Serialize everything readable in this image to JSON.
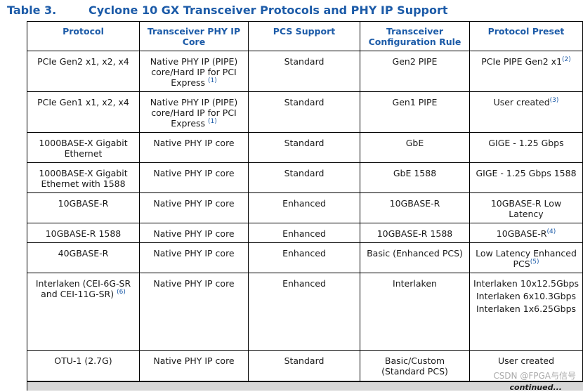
{
  "caption": {
    "number": "Table 3.",
    "title": "Cyclone 10 GX Transceiver Protocols and PHY IP Support"
  },
  "headers": [
    "Protocol",
    "Transceiver PHY IP Core",
    "PCS Support",
    "Transceiver Configuration Rule",
    "Protocol Preset"
  ],
  "rows": [
    {
      "protocol": "PCIe Gen2 x1, x2, x4",
      "protocol_ref": "",
      "phy": "Native PHY IP (PIPE) core/Hard IP for PCI Express",
      "phy_ref": "(1)",
      "pcs": "Standard",
      "rule": "Gen2 PIPE",
      "preset": [
        "PCIe PIPE Gen2 x1"
      ],
      "preset_ref": "(2)"
    },
    {
      "protocol": "PCIe Gen1 x1, x2, x4",
      "protocol_ref": "",
      "phy": "Native PHY IP (PIPE) core/Hard IP for PCI Express",
      "phy_ref": "(1)",
      "pcs": "Standard",
      "rule": "Gen1 PIPE",
      "preset": [
        "User created"
      ],
      "preset_ref": "(3)"
    },
    {
      "protocol": "1000BASE-X Gigabit Ethernet",
      "protocol_ref": "",
      "phy": "Native PHY IP core",
      "phy_ref": "",
      "pcs": "Standard",
      "rule": "GbE",
      "preset": [
        "GIGE - 1.25 Gbps"
      ],
      "preset_ref": ""
    },
    {
      "protocol": "1000BASE-X Gigabit Ethernet with 1588",
      "protocol_ref": "",
      "phy": "Native PHY IP core",
      "phy_ref": "",
      "pcs": "Standard",
      "rule": "GbE 1588",
      "preset": [
        "GIGE - 1.25 Gbps 1588"
      ],
      "preset_ref": ""
    },
    {
      "protocol": "10GBASE-R",
      "protocol_ref": "",
      "phy": "Native PHY IP core",
      "phy_ref": "",
      "pcs": "Enhanced",
      "rule": "10GBASE-R",
      "preset": [
        "10GBASE-R Low Latency"
      ],
      "preset_ref": ""
    },
    {
      "protocol": "10GBASE-R 1588",
      "protocol_ref": "",
      "phy": "Native PHY IP core",
      "phy_ref": "",
      "pcs": "Enhanced",
      "rule": "10GBASE-R 1588",
      "preset": [
        "10GBASE-R"
      ],
      "preset_ref": "(4)"
    },
    {
      "protocol": "40GBASE-R",
      "protocol_ref": "",
      "phy": "Native PHY IP core",
      "phy_ref": "",
      "pcs": "Enhanced",
      "rule": "Basic (Enhanced PCS)",
      "preset": [
        "Low Latency Enhanced PCS"
      ],
      "preset_ref": "(5)"
    },
    {
      "protocol": "Interlaken (CEI-6G-SR and CEI-11G-SR)",
      "protocol_ref": "(6)",
      "phy": "Native PHY IP core",
      "phy_ref": "",
      "pcs": "Enhanced",
      "rule": "Interlaken",
      "preset": [
        "Interlaken 10x12.5Gbps",
        "Interlaken 6x10.3Gbps",
        "Interlaken 1x6.25Gbps"
      ],
      "preset_ref": ""
    },
    {
      "protocol": "OTU-1 (2.7G)",
      "protocol_ref": "",
      "phy": "Native PHY IP core",
      "phy_ref": "",
      "pcs": "Standard",
      "rule": "Basic/Custom (Standard PCS)",
      "preset": [
        "User created"
      ],
      "preset_ref": ""
    }
  ],
  "footer": {
    "continued": "continued..."
  },
  "watermark": "CSDN @FPGA与信号",
  "colors": {
    "accent": "#1c5ba8",
    "footer_bar": "#d7d7d7"
  }
}
